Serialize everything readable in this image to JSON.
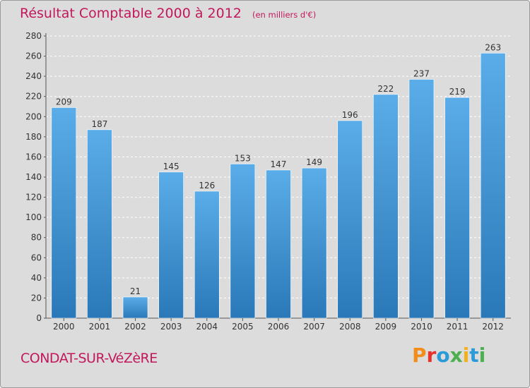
{
  "header": {
    "title": "Résultat Comptable 2000 à 2012",
    "subtitle": "(en milliers d'€)"
  },
  "footer": {
    "commune": "CONDAT-SUR-VéZèRE",
    "brand": "Proxiti",
    "brand_colors": [
      "#f28c1a",
      "#e5322d",
      "#2b9bd8",
      "#4caf50",
      "#f2b01a",
      "#2b9bd8",
      "#4caf50"
    ]
  },
  "colors": {
    "background": "#dcdcdc",
    "bar_top": "#5aade8",
    "bar_bottom": "#2a78b8",
    "grid": "#ffffff",
    "text_accent": "#c2185b"
  },
  "chart_data": {
    "type": "bar",
    "categories": [
      "2000",
      "2001",
      "2002",
      "2003",
      "2004",
      "2005",
      "2006",
      "2007",
      "2008",
      "2009",
      "2010",
      "2011",
      "2012"
    ],
    "values": [
      209,
      187,
      21,
      145,
      126,
      153,
      147,
      149,
      196,
      222,
      237,
      219,
      263
    ],
    "title": "Résultat Comptable 2000 à 2012",
    "ylim": [
      0,
      280
    ],
    "yticks": [
      0,
      20,
      40,
      60,
      80,
      100,
      120,
      140,
      160,
      180,
      200,
      220,
      240,
      260,
      280
    ],
    "grid": true,
    "data_labels": true
  }
}
